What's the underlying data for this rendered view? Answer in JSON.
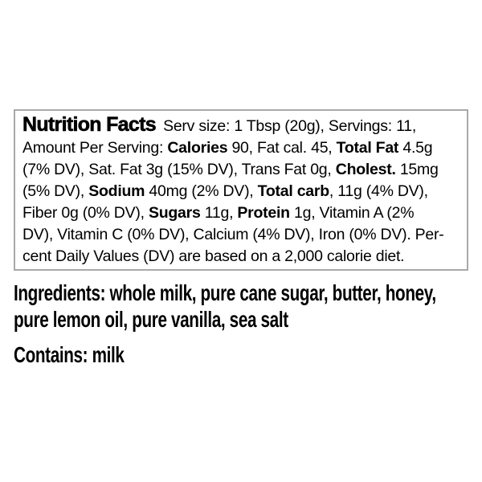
{
  "colors": {
    "background": "#ffffff",
    "text": "#000000",
    "box_border": "#a9a9a9"
  },
  "nutrition_label": {
    "title": "Nutrition Facts",
    "lines": [
      {
        "segments": [
          {
            "style": "title",
            "text": "Nutrition Facts"
          },
          {
            "style": "regular",
            "text": " Serv size: 1 Tbsp (20g), Servings: 11,"
          }
        ]
      },
      {
        "segments": [
          {
            "style": "regular",
            "text": "Amount Per Serving: "
          },
          {
            "style": "bold",
            "text": "Calories"
          },
          {
            "style": "regular",
            "text": " 90, Fat cal. 45, "
          },
          {
            "style": "bold",
            "text": "Total Fat"
          },
          {
            "style": "regular",
            "text": " 4.5g"
          }
        ]
      },
      {
        "segments": [
          {
            "style": "regular",
            "text": "(7% DV), Sat. Fat 3g (15% DV), Trans Fat 0g, "
          },
          {
            "style": "bold",
            "text": "Cholest."
          },
          {
            "style": "regular",
            "text": " 15mg"
          }
        ]
      },
      {
        "segments": [
          {
            "style": "regular",
            "text": "(5% DV), "
          },
          {
            "style": "bold",
            "text": "Sodium"
          },
          {
            "style": "regular",
            "text": " 40mg (2% DV), "
          },
          {
            "style": "bold",
            "text": "Total carb"
          },
          {
            "style": "regular",
            "text": ", 11g (4% DV),"
          }
        ]
      },
      {
        "segments": [
          {
            "style": "regular",
            "text": "Fiber 0g (0% DV), "
          },
          {
            "style": "bold",
            "text": "Sugars"
          },
          {
            "style": "regular",
            "text": " 11g, "
          },
          {
            "style": "bold",
            "text": "Protein"
          },
          {
            "style": "regular",
            "text": " 1g, Vitamin A (2%"
          }
        ]
      },
      {
        "segments": [
          {
            "style": "regular",
            "text": "DV), Vitamin C (0% DV), Calcium (4% DV), Iron (0% DV). Per-"
          }
        ]
      },
      {
        "segments": [
          {
            "style": "regular",
            "text": "cent Daily Values (DV) are based on a 2,000 calorie diet."
          }
        ]
      }
    ],
    "facts": {
      "serving_size": "1 Tbsp (20g)",
      "servings": "11",
      "calories": "90",
      "fat_calories": "45",
      "total_fat": "4.5g (7% DV)",
      "saturated_fat": "3g (15% DV)",
      "trans_fat": "0g",
      "cholesterol": "15mg (5% DV)",
      "sodium": "40mg (2% DV)",
      "total_carb": "11g (4% DV)",
      "fiber": "0g (0% DV)",
      "sugars": "11g",
      "protein": "1g",
      "vitamin_a": "2% DV",
      "vitamin_c": "0% DV",
      "calcium": "4% DV",
      "iron": "0% DV",
      "footnote": "Percent Daily Values (DV) are based on a 2,000 calorie diet."
    }
  },
  "ingredients": {
    "lines": [
      "Ingredients: whole milk, pure cane sugar, butter, honey,",
      "pure lemon oil, pure vanilla, sea salt"
    ],
    "contains": "Contains: milk"
  }
}
